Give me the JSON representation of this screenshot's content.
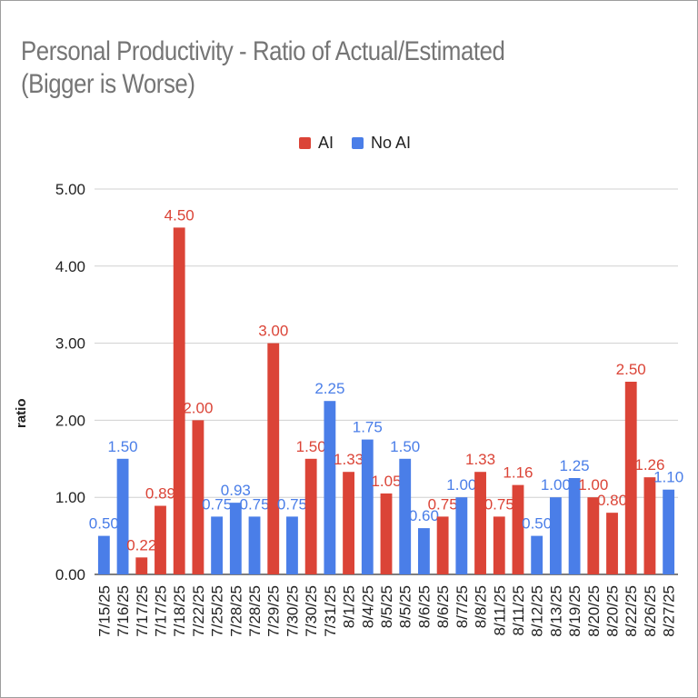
{
  "chart_data": {
    "type": "bar",
    "title": "Personal Productivity - Ratio of Actual/Estimated (Bigger is Worse)",
    "xlabel": "",
    "ylabel": "ratio",
    "ylim": [
      0,
      5
    ],
    "yticks": [
      "0.00",
      "1.00",
      "2.00",
      "3.00",
      "4.00",
      "5.00"
    ],
    "grid": true,
    "legend_position": "top-center",
    "series": [
      {
        "name": "AI",
        "color": "#db4437"
      },
      {
        "name": "No AI",
        "color": "#4a7ee8"
      }
    ],
    "bars": [
      {
        "category": "7/15/25",
        "series": "No AI",
        "value": 0.5,
        "label": "0.50"
      },
      {
        "category": "7/16/25",
        "series": "No AI",
        "value": 1.5,
        "label": "1.50"
      },
      {
        "category": "7/17/25",
        "series": "AI",
        "value": 0.22,
        "label": "0.22"
      },
      {
        "category": "7/17/25",
        "series": "AI",
        "value": 0.89,
        "label": "0.89"
      },
      {
        "category": "7/18/25",
        "series": "AI",
        "value": 4.5,
        "label": "4.50"
      },
      {
        "category": "7/22/25",
        "series": "AI",
        "value": 2.0,
        "label": "2.00"
      },
      {
        "category": "7/25/25",
        "series": "No AI",
        "value": 0.75,
        "label": "0.75"
      },
      {
        "category": "7/28/25",
        "series": "No AI",
        "value": 0.93,
        "label": "0.93"
      },
      {
        "category": "7/28/25",
        "series": "No AI",
        "value": 0.75,
        "label": "0.75"
      },
      {
        "category": "7/29/25",
        "series": "AI",
        "value": 3.0,
        "label": "3.00"
      },
      {
        "category": "7/30/25",
        "series": "No AI",
        "value": 0.75,
        "label": "0.75"
      },
      {
        "category": "7/30/25",
        "series": "AI",
        "value": 1.5,
        "label": "1.50"
      },
      {
        "category": "7/31/25",
        "series": "No AI",
        "value": 2.25,
        "label": "2.25"
      },
      {
        "category": "8/1/25",
        "series": "AI",
        "value": 1.33,
        "label": "1.33"
      },
      {
        "category": "8/4/25",
        "series": "No AI",
        "value": 1.75,
        "label": "1.75"
      },
      {
        "category": "8/5/25",
        "series": "AI",
        "value": 1.05,
        "label": "1.05"
      },
      {
        "category": "8/5/25",
        "series": "No AI",
        "value": 1.5,
        "label": "1.50"
      },
      {
        "category": "8/6/25",
        "series": "No AI",
        "value": 0.6,
        "label": "0.60"
      },
      {
        "category": "8/6/25",
        "series": "AI",
        "value": 0.75,
        "label": "0.75"
      },
      {
        "category": "8/7/25",
        "series": "No AI",
        "value": 1.0,
        "label": "1.00"
      },
      {
        "category": "8/8/25",
        "series": "AI",
        "value": 1.33,
        "label": "1.33"
      },
      {
        "category": "8/11/25",
        "series": "AI",
        "value": 0.75,
        "label": "0.75"
      },
      {
        "category": "8/11/25",
        "series": "AI",
        "value": 1.16,
        "label": "1.16"
      },
      {
        "category": "8/12/25",
        "series": "No AI",
        "value": 0.5,
        "label": "0.50"
      },
      {
        "category": "8/13/25",
        "series": "No AI",
        "value": 1.0,
        "label": "1.00"
      },
      {
        "category": "8/19/25",
        "series": "No AI",
        "value": 1.25,
        "label": "1.25"
      },
      {
        "category": "8/20/25",
        "series": "AI",
        "value": 1.0,
        "label": "1.00"
      },
      {
        "category": "8/20/25",
        "series": "AI",
        "value": 0.8,
        "label": "0.80"
      },
      {
        "category": "8/22/25",
        "series": "AI",
        "value": 2.5,
        "label": "2.50"
      },
      {
        "category": "8/26/25",
        "series": "AI",
        "value": 1.26,
        "label": "1.26"
      },
      {
        "category": "8/27/25",
        "series": "No AI",
        "value": 1.1,
        "label": "1.10"
      }
    ]
  }
}
